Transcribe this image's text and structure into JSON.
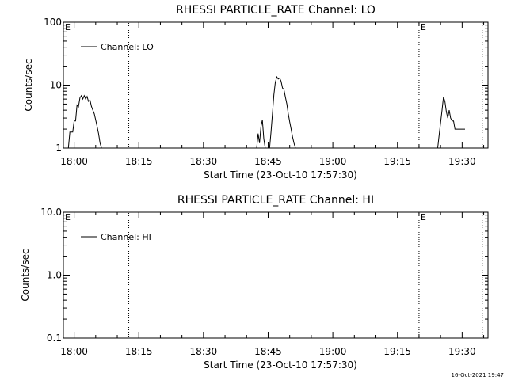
{
  "chart_data": [
    {
      "type": "line",
      "title": "RHESSI PARTICLE_RATE Channel: LO",
      "xlabel": "Start Time (23-Oct-10 17:57:30)",
      "ylabel": "Counts/sec",
      "y_scale": "log",
      "ylim": [
        1,
        100
      ],
      "y_ticks": [
        "1",
        "10",
        "100"
      ],
      "xlim": [
        "17:57:30",
        "19:36:00"
      ],
      "x_ticks": [
        "18:00",
        "18:15",
        "18:30",
        "18:45",
        "19:00",
        "19:15",
        "19:30"
      ],
      "grid": false,
      "legend_position": "top-left",
      "series": [
        {
          "name": "Channel: LO",
          "points": [
            [
              "17:58:40",
              1
            ],
            [
              "17:59:00",
              1.8
            ],
            [
              "17:59:40",
              1.8
            ],
            [
              "18:00:00",
              2.7
            ],
            [
              "18:00:20",
              2.7
            ],
            [
              "18:00:40",
              4.8
            ],
            [
              "18:01:00",
              4.5
            ],
            [
              "18:01:20",
              6.3
            ],
            [
              "18:01:40",
              6.8
            ],
            [
              "18:02:00",
              6.0
            ],
            [
              "18:02:20",
              6.8
            ],
            [
              "18:02:40",
              6.0
            ],
            [
              "18:03:00",
              6.6
            ],
            [
              "18:03:20",
              5.5
            ],
            [
              "18:03:40",
              5.8
            ],
            [
              "18:04:00",
              4.6
            ],
            [
              "18:04:20",
              4.0
            ],
            [
              "18:04:40",
              3.5
            ],
            [
              "18:05:00",
              2.8
            ],
            [
              "18:05:20",
              2.2
            ],
            [
              "18:05:40",
              1.7
            ],
            [
              "18:06:00",
              1.2
            ],
            [
              "18:06:20",
              1
            ],
            null,
            [
              "18:42:20",
              1
            ],
            [
              "18:42:40",
              1.7
            ],
            [
              "18:43:00",
              1.2
            ],
            [
              "18:43:20",
              2.2
            ],
            [
              "18:43:40",
              2.8
            ],
            [
              "18:44:00",
              1.4
            ],
            [
              "18:44:20",
              1
            ],
            null,
            [
              "18:45:20",
              1
            ],
            [
              "18:45:40",
              1.8
            ],
            [
              "18:46:00",
              3.5
            ],
            [
              "18:46:20",
              7.0
            ],
            [
              "18:46:40",
              11.0
            ],
            [
              "18:47:00",
              13.5
            ],
            [
              "18:47:20",
              12.5
            ],
            [
              "18:47:40",
              13.0
            ],
            [
              "18:48:00",
              11.5
            ],
            [
              "18:48:20",
              9.0
            ],
            [
              "18:48:40",
              8.5
            ],
            [
              "18:49:00",
              6.5
            ],
            [
              "18:49:20",
              5.0
            ],
            [
              "18:49:40",
              3.5
            ],
            [
              "18:50:00",
              2.6
            ],
            [
              "18:50:20",
              2.0
            ],
            [
              "18:50:40",
              1.5
            ],
            [
              "18:51:00",
              1.2
            ],
            [
              "18:51:20",
              1
            ],
            null,
            [
              "19:24:20",
              1
            ],
            [
              "19:24:40",
              1.6
            ],
            [
              "19:25:00",
              2.5
            ],
            [
              "19:25:20",
              4.0
            ],
            [
              "19:25:40",
              6.5
            ],
            [
              "19:26:00",
              5.5
            ],
            [
              "19:26:20",
              3.8
            ],
            [
              "19:26:40",
              3.0
            ],
            [
              "19:27:00",
              4.0
            ],
            [
              "19:27:20",
              3.0
            ],
            [
              "19:27:40",
              2.7
            ],
            [
              "19:28:00",
              2.7
            ],
            [
              "19:28:20",
              2.0
            ],
            [
              "19:30:40",
              2.0
            ]
          ]
        }
      ],
      "event_markers": [
        {
          "time": "18:12:40",
          "label": ""
        },
        {
          "time": "19:20:00",
          "label": "E"
        },
        {
          "time": "19:34:40",
          "label": ""
        }
      ],
      "corner_label": "E"
    },
    {
      "type": "line",
      "title": "RHESSI PARTICLE_RATE Channel: HI",
      "xlabel": "Start Time (23-Oct-10 17:57:30)",
      "ylabel": "Counts/sec",
      "y_scale": "log",
      "ylim": [
        0.1,
        10
      ],
      "y_ticks": [
        "0.1",
        "1.0",
        "10.0"
      ],
      "xlim": [
        "17:57:30",
        "19:36:00"
      ],
      "x_ticks": [
        "18:00",
        "18:15",
        "18:30",
        "18:45",
        "19:00",
        "19:15",
        "19:30"
      ],
      "grid": false,
      "legend_position": "top-left",
      "series": [
        {
          "name": "Channel: HI",
          "points": []
        }
      ],
      "event_markers": [
        {
          "time": "18:12:40",
          "label": ""
        },
        {
          "time": "19:20:00",
          "label": "E"
        },
        {
          "time": "19:34:40",
          "label": ""
        }
      ],
      "corner_label": "E"
    }
  ],
  "footer": {
    "timestamp": "16-Oct-2021 19:47"
  }
}
